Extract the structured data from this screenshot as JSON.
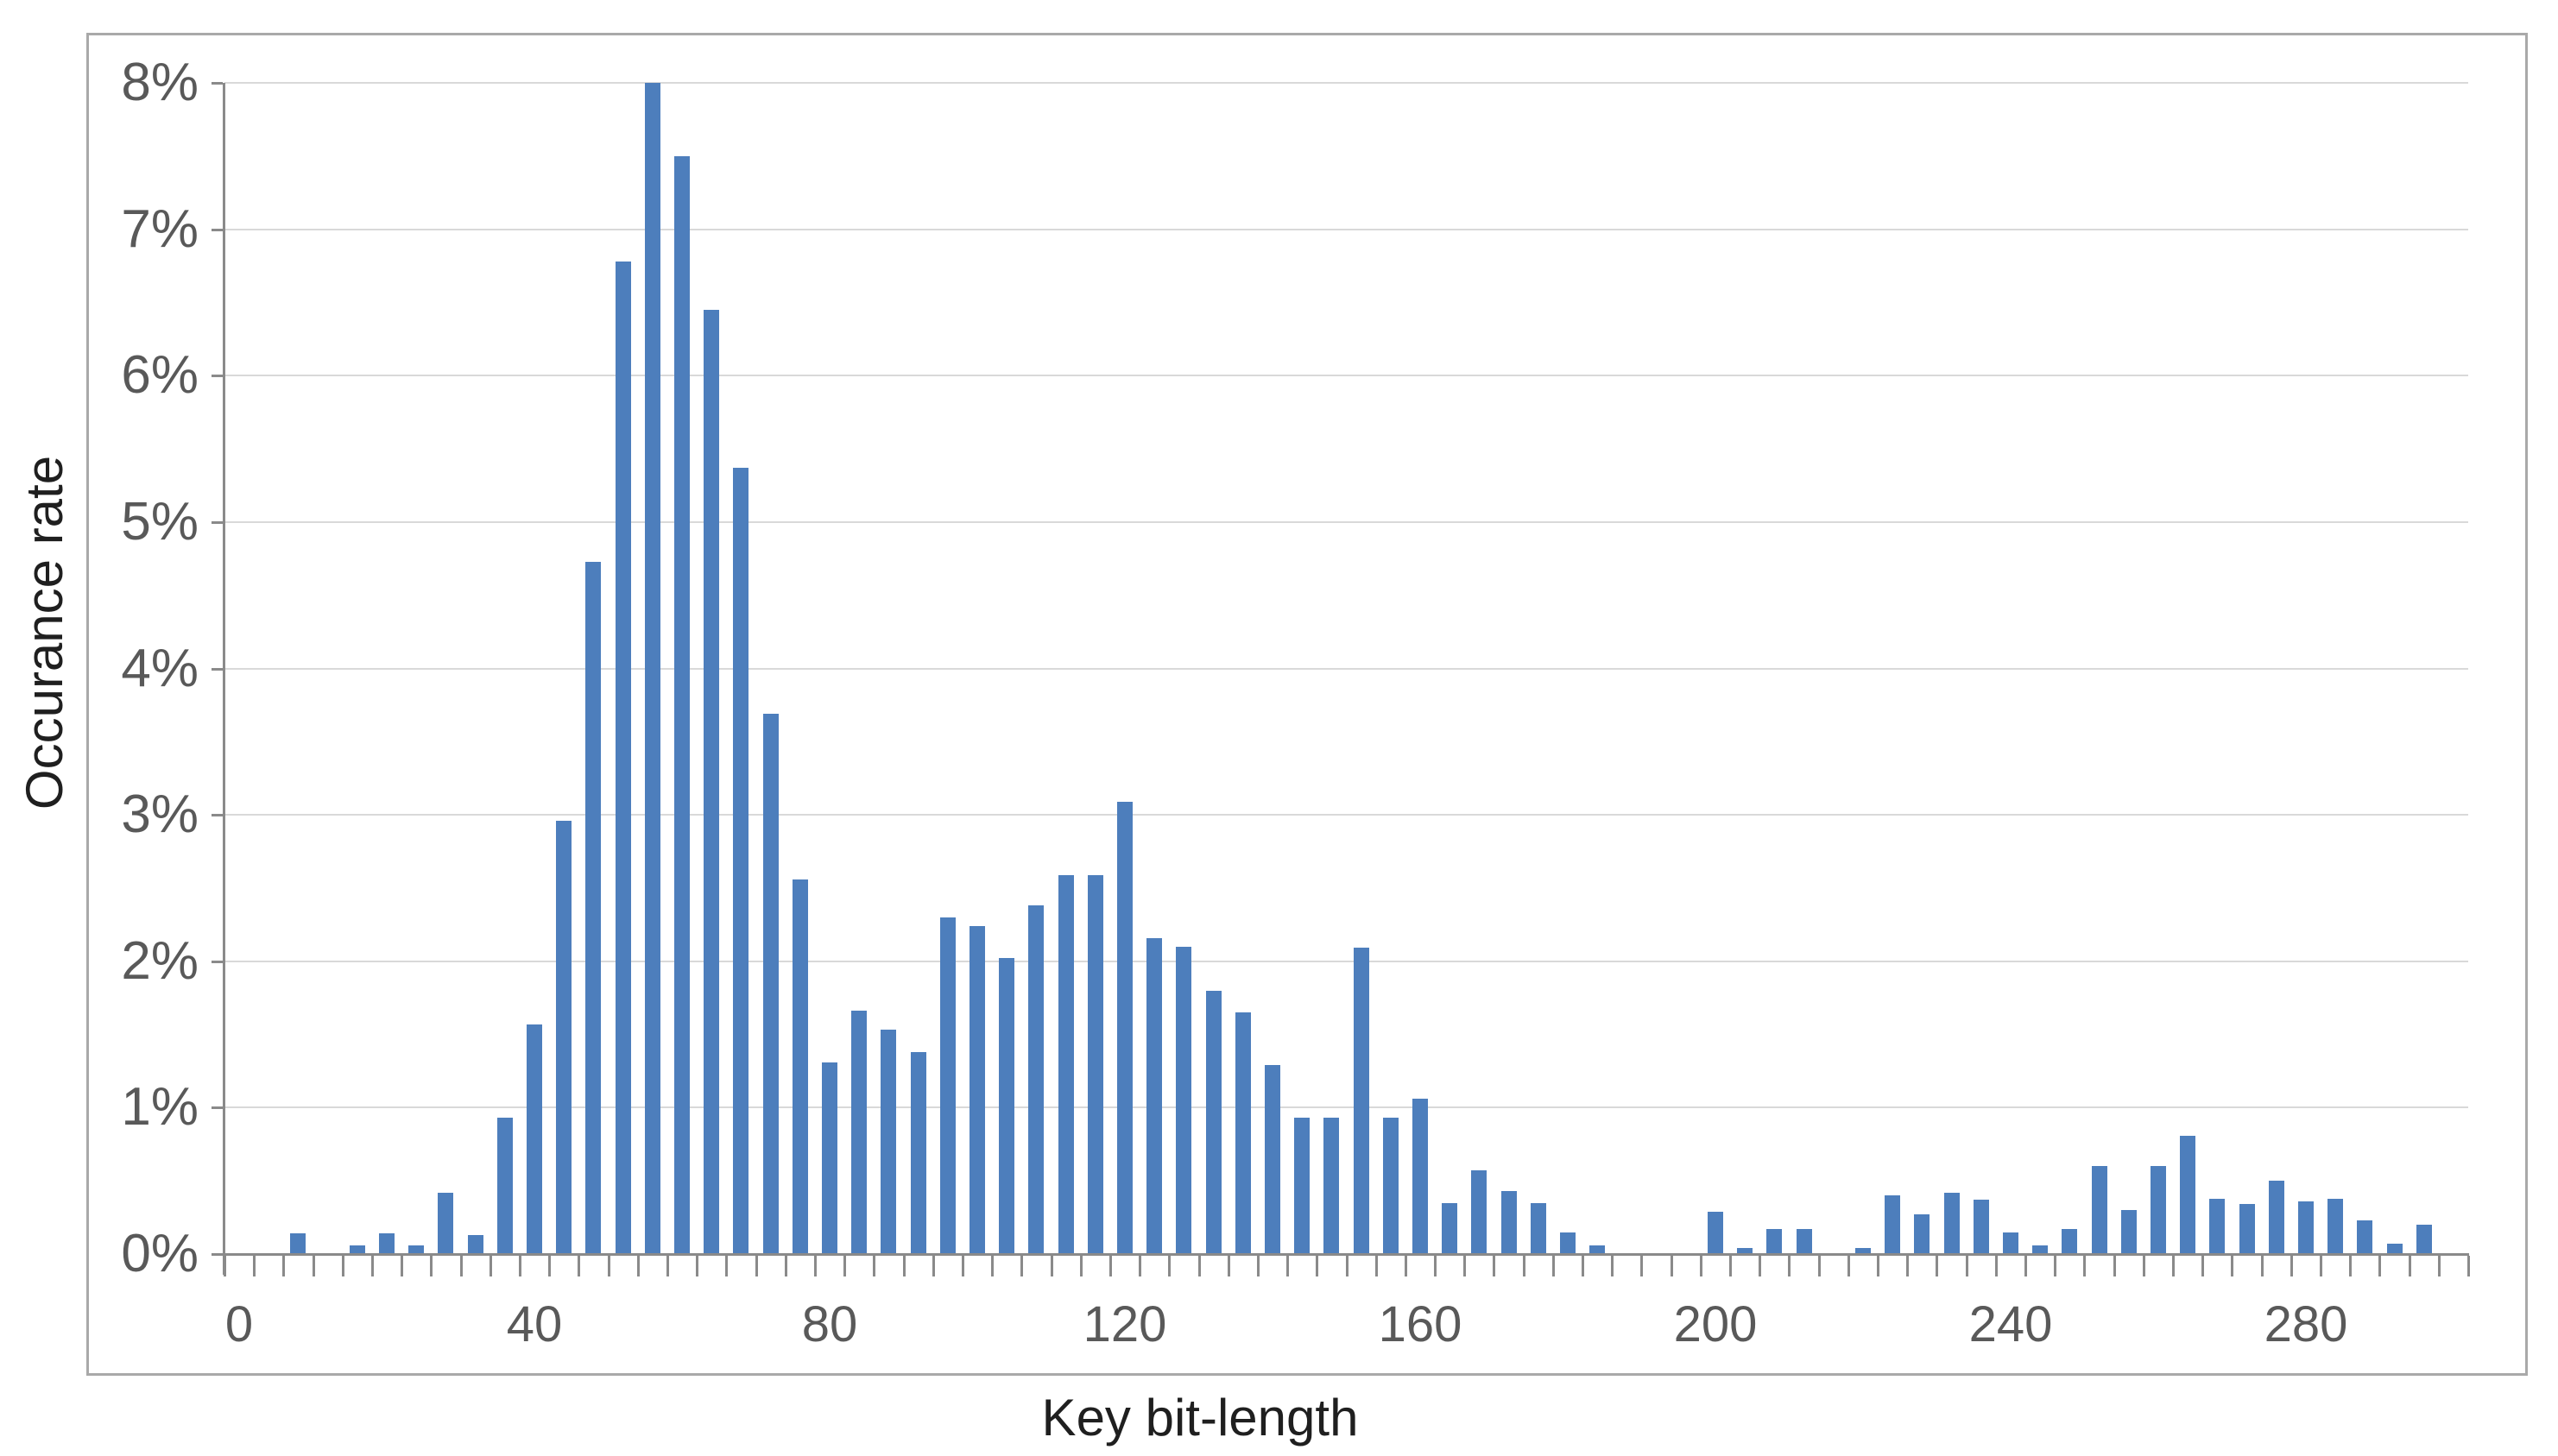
{
  "chart_data": {
    "type": "bar",
    "title": "",
    "xlabel": "Key bit-length",
    "ylabel": "Occurance rate",
    "x": [
      0,
      4,
      8,
      12,
      16,
      20,
      24,
      28,
      32,
      36,
      40,
      44,
      48,
      52,
      56,
      60,
      64,
      68,
      72,
      76,
      80,
      84,
      88,
      92,
      96,
      100,
      104,
      108,
      112,
      116,
      120,
      124,
      128,
      132,
      136,
      140,
      144,
      148,
      152,
      156,
      160,
      164,
      168,
      172,
      176,
      180,
      184,
      188,
      192,
      196,
      200,
      204,
      208,
      212,
      216,
      220,
      224,
      228,
      232,
      236,
      240,
      244,
      248,
      252,
      256,
      260,
      264,
      268,
      272,
      276,
      280,
      284,
      288,
      292,
      296,
      300
    ],
    "values": [
      0,
      0,
      0.14,
      0,
      0.06,
      0.14,
      0.06,
      0.42,
      0.13,
      0.93,
      1.57,
      2.96,
      4.73,
      6.78,
      8.0,
      7.5,
      6.45,
      5.37,
      3.69,
      2.56,
      1.31,
      1.66,
      1.53,
      1.38,
      2.3,
      2.24,
      2.02,
      2.38,
      2.59,
      2.59,
      3.09,
      2.16,
      2.1,
      1.8,
      1.65,
      1.29,
      0.93,
      0.93,
      2.09,
      0.93,
      1.06,
      0.35,
      0.57,
      0.43,
      0.35,
      0.15,
      0.06,
      0,
      0,
      0,
      0.29,
      0.04,
      0.17,
      0.17,
      0,
      0.04,
      0.4,
      0.27,
      0.42,
      0.37,
      0.15,
      0.06,
      0.17,
      0.6,
      0.3,
      0.6,
      0.81,
      0.38,
      0.34,
      0.5,
      0.36,
      0.38,
      0.23,
      0.07,
      0.2,
      0
    ],
    "unit": "%",
    "ylim": [
      0,
      8
    ],
    "y_tick_labels": [
      "0%",
      "1%",
      "2%",
      "3%",
      "4%",
      "5%",
      "6%",
      "7%",
      "8%"
    ],
    "x_tick_labels": [
      "0",
      "40",
      "80",
      "120",
      "160",
      "200",
      "240",
      "280"
    ],
    "x_tick_label_positions": [
      0,
      10,
      20,
      30,
      40,
      50,
      60,
      70
    ],
    "grid": "horizontal",
    "legend": "none",
    "style": {
      "bar_color": "#4d7ebc",
      "gridline_color": "#d9d9d9",
      "axis_color": "#8a8a8a",
      "tick_label_color": "#595959",
      "axis_title_color": "#1f1f1f",
      "frame_border_color": "#a9a9a9",
      "background_color": "#ffffff"
    }
  }
}
